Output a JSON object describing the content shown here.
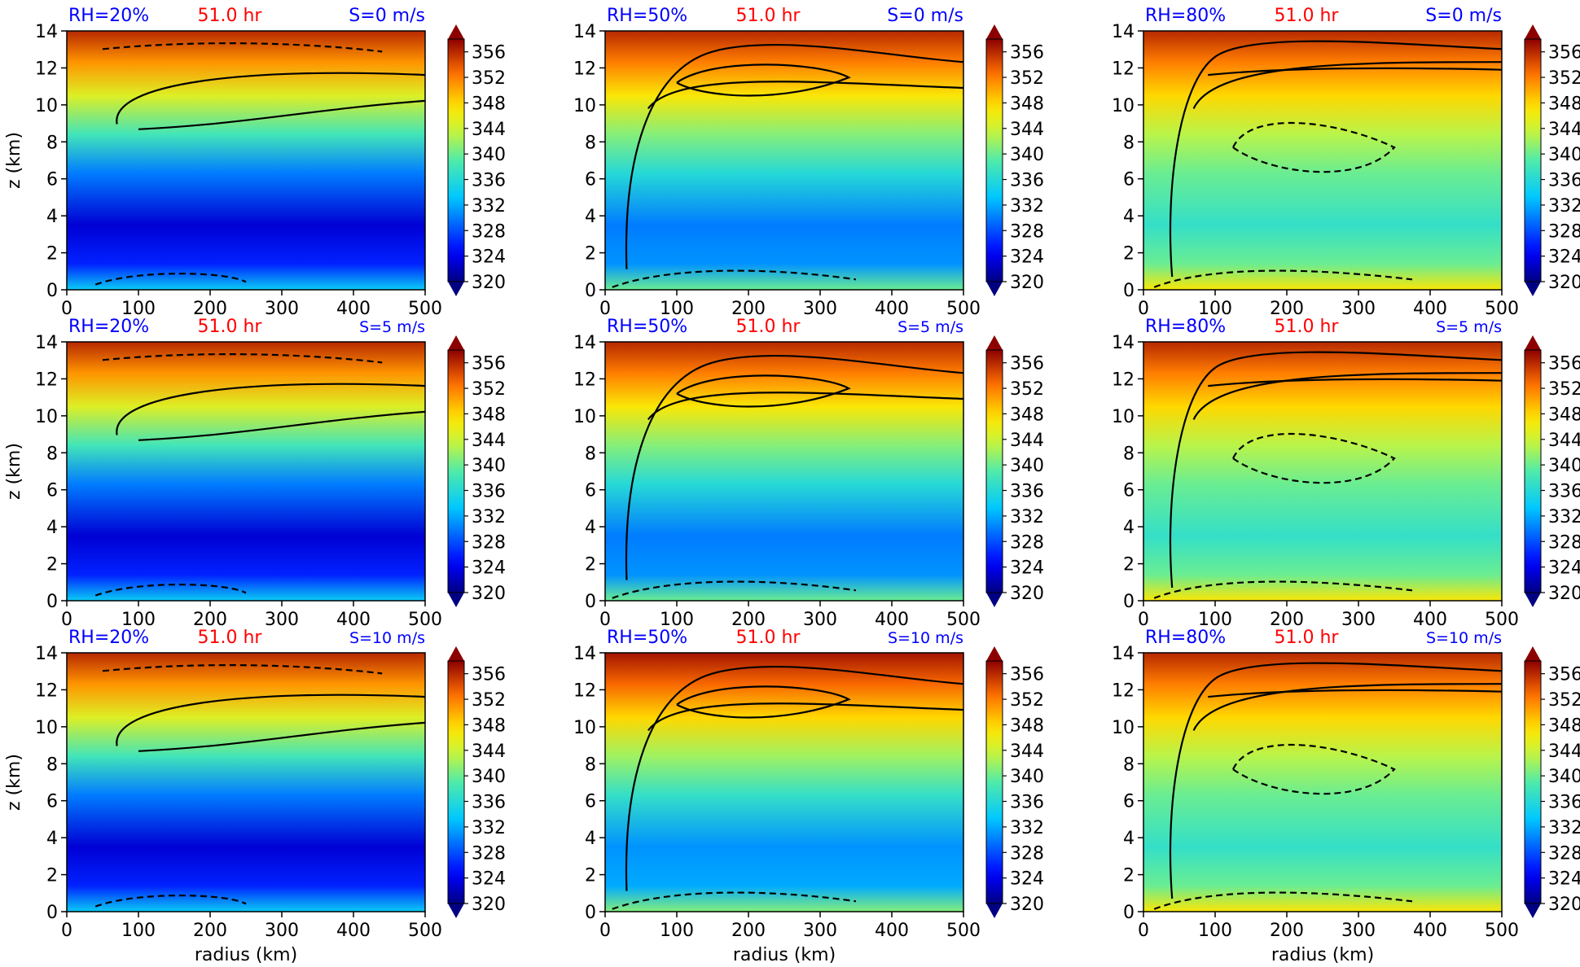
{
  "figure": {
    "colorbar_ticks": [
      "356",
      "352",
      "348",
      "344",
      "340",
      "336",
      "332",
      "328",
      "324",
      "320"
    ],
    "colorbar_range": [
      320,
      358
    ],
    "colors": {
      "rh_label": "#0000ff",
      "time_label": "#ff0000",
      "shear_label": "#0000ff",
      "contour": "#000000"
    }
  },
  "chart_data": [
    {
      "type": "heatmap",
      "rh": "RH=20%",
      "time": "51.0 hr",
      "shear": "S=0 m/s",
      "xlabel": "",
      "ylabel": "z (km)",
      "xticks": [
        "0",
        "100",
        "200",
        "300",
        "400",
        "500"
      ],
      "yticks": [
        "0",
        "2",
        "4",
        "6",
        "8",
        "10",
        "12",
        "14"
      ],
      "xlim": [
        0,
        500
      ],
      "ylim": [
        0,
        14
      ],
      "colorbar_range": [
        320,
        358
      ]
    },
    {
      "type": "heatmap",
      "rh": "RH=50%",
      "time": "51.0 hr",
      "shear": "S=0 m/s",
      "xlabel": "",
      "ylabel": "",
      "xticks": [
        "0",
        "100",
        "200",
        "300",
        "400",
        "500"
      ],
      "yticks": [
        "0",
        "2",
        "4",
        "6",
        "8",
        "10",
        "12",
        "14"
      ],
      "xlim": [
        0,
        500
      ],
      "ylim": [
        0,
        14
      ],
      "colorbar_range": [
        320,
        358
      ]
    },
    {
      "type": "heatmap",
      "rh": "RH=80%",
      "time": "51.0 hr",
      "shear": "S=0 m/s",
      "xlabel": "",
      "ylabel": "",
      "xticks": [
        "0",
        "100",
        "200",
        "300",
        "400",
        "500"
      ],
      "yticks": [
        "0",
        "2",
        "4",
        "6",
        "8",
        "10",
        "12",
        "14"
      ],
      "xlim": [
        0,
        500
      ],
      "ylim": [
        0,
        14
      ],
      "colorbar_range": [
        320,
        358
      ]
    },
    {
      "type": "heatmap",
      "rh": "RH=20%",
      "time": "51.0 hr",
      "shear": "S=5 m/s",
      "xlabel": "",
      "ylabel": "z (km)",
      "xticks": [
        "0",
        "100",
        "200",
        "300",
        "400",
        "500"
      ],
      "yticks": [
        "0",
        "2",
        "4",
        "6",
        "8",
        "10",
        "12",
        "14"
      ],
      "xlim": [
        0,
        500
      ],
      "ylim": [
        0,
        14
      ],
      "colorbar_range": [
        320,
        358
      ]
    },
    {
      "type": "heatmap",
      "rh": "RH=50%",
      "time": "51.0 hr",
      "shear": "S=5 m/s",
      "xlabel": "",
      "ylabel": "",
      "xticks": [
        "0",
        "100",
        "200",
        "300",
        "400",
        "500"
      ],
      "yticks": [
        "0",
        "2",
        "4",
        "6",
        "8",
        "10",
        "12",
        "14"
      ],
      "xlim": [
        0,
        500
      ],
      "ylim": [
        0,
        14
      ],
      "colorbar_range": [
        320,
        358
      ]
    },
    {
      "type": "heatmap",
      "rh": "RH=80%",
      "time": "51.0 hr",
      "shear": "S=5 m/s",
      "xlabel": "",
      "ylabel": "",
      "xticks": [
        "0",
        "100",
        "200",
        "300",
        "400",
        "500"
      ],
      "yticks": [
        "0",
        "2",
        "4",
        "6",
        "8",
        "10",
        "12",
        "14"
      ],
      "xlim": [
        0,
        500
      ],
      "ylim": [
        0,
        14
      ],
      "colorbar_range": [
        320,
        358
      ]
    },
    {
      "type": "heatmap",
      "rh": "RH=20%",
      "time": "51.0 hr",
      "shear": "S=10 m/s",
      "xlabel": "radius (km)",
      "ylabel": "z (km)",
      "xticks": [
        "0",
        "100",
        "200",
        "300",
        "400",
        "500"
      ],
      "yticks": [
        "0",
        "2",
        "4",
        "6",
        "8",
        "10",
        "12",
        "14"
      ],
      "xlim": [
        0,
        500
      ],
      "ylim": [
        0,
        14
      ],
      "colorbar_range": [
        320,
        358
      ]
    },
    {
      "type": "heatmap",
      "rh": "RH=50%",
      "time": "51.0 hr",
      "shear": "S=10 m/s",
      "xlabel": "radius (km)",
      "ylabel": "",
      "xticks": [
        "0",
        "100",
        "200",
        "300",
        "400",
        "500"
      ],
      "yticks": [
        "0",
        "2",
        "4",
        "6",
        "8",
        "10",
        "12",
        "14"
      ],
      "xlim": [
        0,
        500
      ],
      "ylim": [
        0,
        14
      ],
      "colorbar_range": [
        320,
        358
      ]
    },
    {
      "type": "heatmap",
      "rh": "RH=80%",
      "time": "51.0 hr",
      "shear": "S=10 m/s",
      "xlabel": "radius (km)",
      "ylabel": "",
      "xticks": [
        "0",
        "100",
        "200",
        "300",
        "400",
        "500"
      ],
      "yticks": [
        "0",
        "2",
        "4",
        "6",
        "8",
        "10",
        "12",
        "14"
      ],
      "xlim": [
        0,
        500
      ],
      "ylim": [
        0,
        14
      ],
      "colorbar_range": [
        320,
        358
      ]
    }
  ]
}
